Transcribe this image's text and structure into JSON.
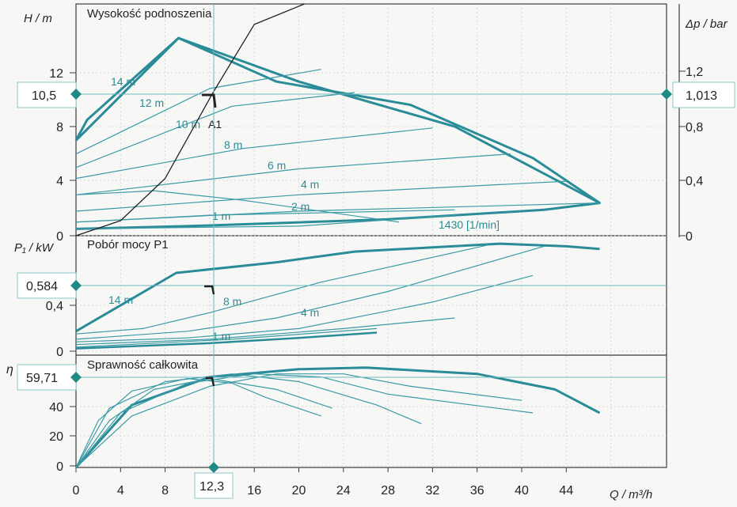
{
  "chart_data": [
    {
      "type": "line",
      "title": "Wysokość podnoszenia",
      "ylabel": "H / m",
      "ylabel_right": "Δp / bar",
      "xlim": [
        0,
        50
      ],
      "ylim": [
        0,
        16
      ],
      "yticks": [
        "0",
        "4",
        "8",
        "12"
      ],
      "yticks_right": [
        "0",
        "0,4",
        "0,8",
        "1,2"
      ],
      "grid": true,
      "speed_labels": [
        "14 m",
        "12 m",
        "10 m",
        "8 m",
        "6 m",
        "4 m",
        "2 m",
        "1 m"
      ],
      "speed_note": "1430 [1/min]",
      "point_label": "A1",
      "marker_H": "10,5",
      "marker_dp": "1,013",
      "envelope": {
        "x": [
          0,
          1,
          9.2,
          20,
          34,
          47,
          42,
          28,
          10,
          0
        ],
        "y": [
          7,
          8.5,
          14.5,
          11.3,
          8,
          2.4,
          1.9,
          1.2,
          0.7,
          0.5
        ]
      },
      "series": [
        {
          "x": [
            0,
            9.2,
            18,
            30,
            41,
            47
          ],
          "y": [
            7,
            14.5,
            11.3,
            9.6,
            5.7,
            2.4
          ]
        },
        {
          "x": [
            0,
            12,
            22
          ],
          "y": [
            6,
            10.8,
            12.2
          ]
        },
        {
          "x": [
            0,
            14,
            25
          ],
          "y": [
            5,
            9.5,
            10.5
          ]
        },
        {
          "x": [
            0,
            15,
            32
          ],
          "y": [
            4.2,
            6.4,
            7.9
          ]
        },
        {
          "x": [
            0,
            20,
            39
          ],
          "y": [
            3,
            4.9,
            6
          ]
        },
        {
          "x": [
            0,
            20,
            44
          ],
          "y": [
            1.8,
            3,
            4
          ]
        },
        {
          "x": [
            0,
            20,
            47
          ],
          "y": [
            1,
            1.8,
            2.4
          ]
        },
        {
          "x": [
            0,
            20,
            34
          ],
          "y": [
            0.5,
            0.7,
            1.5
          ]
        },
        {
          "x": [
            0,
            7,
            15,
            29
          ],
          "y": [
            3,
            3.3,
            2.6,
            1
          ]
        },
        {
          "x": [
            0,
            12,
            34
          ],
          "y": [
            1,
            1.5,
            1.9
          ]
        }
      ],
      "system_curve": {
        "x": [
          0,
          4,
          8,
          12.3,
          16,
          20.5
        ],
        "y": [
          0,
          1.1,
          4.2,
          10.5,
          15.5,
          17
        ]
      }
    },
    {
      "type": "line",
      "title": "Pobór mocy P1",
      "ylabel": "P₁ / kW",
      "xlim": [
        0,
        50
      ],
      "ylim": [
        0,
        0.9
      ],
      "yticks": [
        "0",
        "0,4"
      ],
      "speed_labels": [
        "14 m",
        "8 m",
        "4 m",
        "1 m"
      ],
      "marker_P1": "0,584",
      "series": [
        {
          "x": [
            0,
            9,
            18,
            25,
            38,
            44,
            47
          ],
          "y": [
            0.18,
            0.62,
            0.7,
            0.78,
            0.84,
            0.82,
            0.8
          ]
        },
        {
          "x": [
            0,
            6,
            12,
            22,
            37
          ],
          "y": [
            0.16,
            0.2,
            0.32,
            0.55,
            0.83
          ]
        },
        {
          "x": [
            0,
            10,
            18,
            28,
            42
          ],
          "y": [
            0.12,
            0.18,
            0.28,
            0.48,
            0.82
          ]
        },
        {
          "x": [
            0,
            10,
            20,
            32,
            41
          ],
          "y": [
            0.1,
            0.13,
            0.2,
            0.4,
            0.6
          ]
        },
        {
          "x": [
            0,
            12,
            24,
            34
          ],
          "y": [
            0.08,
            0.12,
            0.2,
            0.28
          ]
        },
        {
          "x": [
            0,
            14,
            27
          ],
          "y": [
            0.06,
            0.12,
            0.2
          ]
        },
        {
          "x": [
            0,
            12,
            20,
            27
          ],
          "y": [
            0.05,
            0.09,
            0.13,
            0.17
          ]
        }
      ]
    },
    {
      "type": "line",
      "title": "Sprawność całkowita",
      "ylabel": "η",
      "xlim": [
        0,
        50
      ],
      "ylim": [
        0,
        70
      ],
      "yticks": [
        "0",
        "20",
        "40"
      ],
      "marker_eta": "59,71",
      "series": [
        {
          "x": [
            0,
            5,
            12,
            20,
            26,
            36,
            43,
            47
          ],
          "y": [
            0,
            40,
            58,
            63,
            64,
            60,
            50,
            35
          ]
        },
        {
          "x": [
            0,
            3,
            8,
            14,
            20,
            27,
            31
          ],
          "y": [
            0,
            38,
            55,
            60,
            55,
            40,
            28
          ]
        },
        {
          "x": [
            0,
            4,
            10,
            16,
            22,
            28,
            41
          ],
          "y": [
            0,
            35,
            54,
            60,
            58,
            47,
            35
          ]
        },
        {
          "x": [
            0,
            5,
            12,
            18,
            24,
            30,
            40
          ],
          "y": [
            0,
            33,
            52,
            60,
            60,
            52,
            43
          ]
        },
        {
          "x": [
            0,
            3,
            7,
            12,
            18,
            23
          ],
          "y": [
            0,
            30,
            50,
            57,
            50,
            38
          ]
        },
        {
          "x": [
            0,
            2,
            5,
            10,
            14,
            17,
            22
          ],
          "y": [
            0,
            30,
            49,
            57,
            54,
            45,
            33
          ]
        }
      ]
    }
  ],
  "x_axis": {
    "label": "Q / m³/h",
    "ticks": [
      "0",
      "4",
      "8",
      "16",
      "20",
      "24",
      "28",
      "32",
      "36",
      "40",
      "44"
    ],
    "marker_Q": "12,3"
  },
  "colors": {
    "curve": "#2a8c98",
    "thin": "#3a9aa5",
    "marker": "#1f8a84",
    "grid": "#c8d4d0",
    "axis": "#3a3a3a",
    "system_curve": "#222222",
    "text": "#222222"
  }
}
